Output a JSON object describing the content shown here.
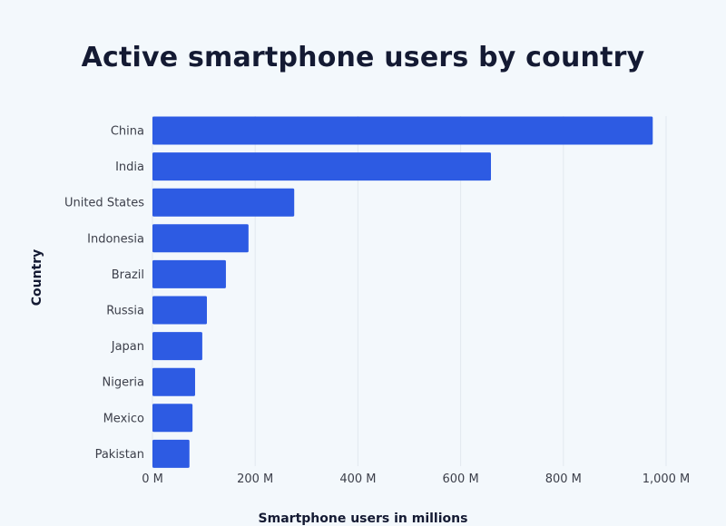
{
  "chart_data": {
    "type": "bar",
    "orientation": "horizontal",
    "title": "Active smartphone users by country",
    "xlabel": "Smartphone users in millions",
    "ylabel": "Country",
    "categories": [
      "China",
      "India",
      "United States",
      "Indonesia",
      "Brazil",
      "Russia",
      "Japan",
      "Nigeria",
      "Mexico",
      "Pakistan"
    ],
    "values": [
      974,
      659,
      276,
      187,
      143,
      106,
      97,
      83,
      78,
      72
    ],
    "xlim": [
      0,
      1000
    ],
    "ticks": [
      0,
      200,
      400,
      600,
      800,
      1000
    ],
    "tick_labels": [
      "0 M",
      "200 M",
      "400 M",
      "600 M",
      "800 M",
      "1,000 M"
    ],
    "grid": true,
    "bar_color": "#2d5be3"
  }
}
